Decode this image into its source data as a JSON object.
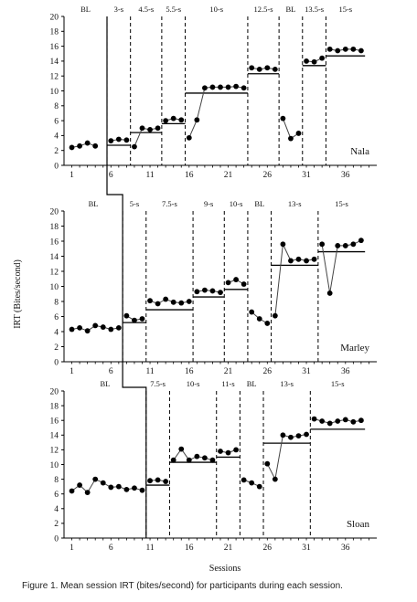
{
  "caption": "Figure 1. Mean session IRT (bites/second) for participants during each session.",
  "chart_data": {
    "type": "line",
    "ylabel": "IRT (Bites/second)",
    "xlabel": "Sessions",
    "ylim": [
      0,
      20
    ],
    "xlim": [
      0,
      40
    ],
    "y_ticks": [
      0,
      2,
      4,
      6,
      8,
      10,
      12,
      14,
      16,
      18,
      20
    ],
    "x_ticks": [
      1,
      6,
      11,
      16,
      21,
      26,
      31,
      36
    ],
    "panels": [
      {
        "participant": "Nala",
        "x_tick_labels": [
          "1",
          "6",
          "11",
          "16",
          "21",
          "26",
          "31",
          "36"
        ],
        "phases": [
          {
            "label": "BL",
            "start": 0,
            "end": 5.5
          },
          {
            "label": "3-s",
            "start": 5.5,
            "end": 8.5
          },
          {
            "label": "4.5-s",
            "start": 8.5,
            "end": 12.5
          },
          {
            "label": "5.5-s",
            "start": 12.5,
            "end": 15.5
          },
          {
            "label": "10-s",
            "start": 15.5,
            "end": 23.5
          },
          {
            "label": "12.5-s",
            "start": 23.5,
            "end": 27.5
          },
          {
            "label": "BL",
            "start": 27.5,
            "end": 30.5
          },
          {
            "label": "13.5-s",
            "start": 30.5,
            "end": 33.5
          },
          {
            "label": "15-s",
            "start": 33.5,
            "end": 38.5
          }
        ],
        "criterion_lines": [
          {
            "y": 2.7,
            "x0": 5.5,
            "x1": 8.5
          },
          {
            "y": 4.4,
            "x0": 8.5,
            "x1": 12.5
          },
          {
            "y": 5.6,
            "x0": 12.5,
            "x1": 15.5
          },
          {
            "y": 9.7,
            "x0": 15.5,
            "x1": 23.5
          },
          {
            "y": 12.3,
            "x0": 23.5,
            "x1": 27.5
          },
          {
            "y": 13.4,
            "x0": 30.5,
            "x1": 33.5
          },
          {
            "y": 14.7,
            "x0": 33.5,
            "x1": 38.5
          }
        ],
        "series": [
          {
            "x": [
              1,
              2,
              3,
              4
            ],
            "y": [
              2.4,
              2.6,
              3.0,
              2.6
            ]
          },
          {
            "x": [
              6,
              7,
              8
            ],
            "y": [
              3.3,
              3.5,
              3.4
            ]
          },
          {
            "x": [
              9,
              10,
              11,
              12
            ],
            "y": [
              2.5,
              5.0,
              4.8,
              5.0
            ]
          },
          {
            "x": [
              13,
              14,
              15
            ],
            "y": [
              6.0,
              6.3,
              6.1
            ]
          },
          {
            "x": [
              16,
              17,
              18,
              19,
              20,
              21,
              22,
              23
            ],
            "y": [
              3.7,
              6.1,
              10.4,
              10.5,
              10.5,
              10.5,
              10.6,
              10.4
            ]
          },
          {
            "x": [
              24,
              25,
              26,
              27
            ],
            "y": [
              13.1,
              12.9,
              13.1,
              12.9
            ]
          },
          {
            "x": [
              28,
              29,
              30
            ],
            "y": [
              6.3,
              3.6,
              4.3
            ]
          },
          {
            "x": [
              31,
              32,
              33
            ],
            "y": [
              14.0,
              13.9,
              14.4
            ]
          },
          {
            "x": [
              34,
              35,
              36,
              37,
              38
            ],
            "y": [
              15.6,
              15.4,
              15.6,
              15.6,
              15.4
            ]
          }
        ]
      },
      {
        "participant": "Marley",
        "x_tick_labels": [
          "1",
          "6",
          "11",
          "16",
          "21",
          "26",
          "31",
          "36"
        ],
        "phases": [
          {
            "label": "BL",
            "start": 0,
            "end": 7.5
          },
          {
            "label": "5-s",
            "start": 7.5,
            "end": 10.5
          },
          {
            "label": "7.5-s",
            "start": 10.5,
            "end": 16.5
          },
          {
            "label": "9-s",
            "start": 16.5,
            "end": 20.5
          },
          {
            "label": "10-s",
            "start": 20.5,
            "end": 23.5
          },
          {
            "label": "BL",
            "start": 23.5,
            "end": 26.5
          },
          {
            "label": "13-s",
            "start": 26.5,
            "end": 32.5
          },
          {
            "label": "15-s",
            "start": 32.5,
            "end": 38.5
          }
        ],
        "criterion_lines": [
          {
            "y": 5.2,
            "x0": 7.5,
            "x1": 10.5
          },
          {
            "y": 6.9,
            "x0": 10.5,
            "x1": 16.5
          },
          {
            "y": 8.6,
            "x0": 16.5,
            "x1": 20.5
          },
          {
            "y": 9.6,
            "x0": 20.5,
            "x1": 23.5
          },
          {
            "y": 12.8,
            "x0": 26.5,
            "x1": 32.5
          },
          {
            "y": 14.6,
            "x0": 32.5,
            "x1": 38.5
          }
        ],
        "series": [
          {
            "x": [
              1,
              2,
              3,
              4,
              5,
              6,
              7
            ],
            "y": [
              4.3,
              4.5,
              4.1,
              4.8,
              4.6,
              4.3,
              4.5
            ]
          },
          {
            "x": [
              8,
              9,
              10
            ],
            "y": [
              6.1,
              5.5,
              5.7
            ]
          },
          {
            "x": [
              11,
              12,
              13,
              14,
              15,
              16
            ],
            "y": [
              8.1,
              7.7,
              8.3,
              7.9,
              7.8,
              8.0
            ]
          },
          {
            "x": [
              17,
              18,
              19,
              20
            ],
            "y": [
              9.3,
              9.5,
              9.4,
              9.2
            ]
          },
          {
            "x": [
              21,
              22,
              23
            ],
            "y": [
              10.5,
              10.9,
              10.3
            ]
          },
          {
            "x": [
              24,
              25,
              26
            ],
            "y": [
              6.6,
              5.7,
              5.1
            ]
          },
          {
            "x": [
              27,
              28,
              29,
              30,
              31,
              32
            ],
            "y": [
              6.1,
              15.6,
              13.4,
              13.6,
              13.4,
              13.6
            ]
          },
          {
            "x": [
              33,
              34,
              35,
              36,
              37,
              38
            ],
            "y": [
              15.6,
              9.1,
              15.4,
              15.4,
              15.6,
              16.1
            ]
          }
        ]
      },
      {
        "participant": "Sloan",
        "x_tick_labels": [
          "1",
          "6",
          "11",
          "16",
          "21",
          "26",
          "31",
          "36"
        ],
        "phases": [
          {
            "label": "BL",
            "start": 0,
            "end": 10.5
          },
          {
            "label": "7.5-s",
            "start": 10.5,
            "end": 13.5
          },
          {
            "label": "10-s",
            "start": 13.5,
            "end": 19.5
          },
          {
            "label": "11-s",
            "start": 19.5,
            "end": 22.5
          },
          {
            "label": "BL",
            "start": 22.5,
            "end": 25.5
          },
          {
            "label": "13-s",
            "start": 25.5,
            "end": 31.5
          },
          {
            "label": "15-s",
            "start": 31.5,
            "end": 38.5
          }
        ],
        "criterion_lines": [
          {
            "y": 7.2,
            "x0": 10.5,
            "x1": 13.5
          },
          {
            "y": 10.3,
            "x0": 13.5,
            "x1": 19.5
          },
          {
            "y": 11.0,
            "x0": 19.5,
            "x1": 22.5
          },
          {
            "y": 12.9,
            "x0": 25.5,
            "x1": 31.5
          },
          {
            "y": 14.8,
            "x0": 31.5,
            "x1": 38.5
          }
        ],
        "series": [
          {
            "x": [
              1,
              2,
              3,
              4,
              5,
              6,
              7,
              8,
              9,
              10
            ],
            "y": [
              6.4,
              7.2,
              6.2,
              8.0,
              7.5,
              6.9,
              7.0,
              6.6,
              6.8,
              6.5
            ]
          },
          {
            "x": [
              11,
              12,
              13
            ],
            "y": [
              7.8,
              7.9,
              7.7
            ]
          },
          {
            "x": [
              14,
              15,
              16,
              17,
              18,
              19
            ],
            "y": [
              10.6,
              12.1,
              10.6,
              11.1,
              10.9,
              10.6
            ]
          },
          {
            "x": [
              20,
              21,
              22
            ],
            "y": [
              11.8,
              11.6,
              12.0
            ]
          },
          {
            "x": [
              23,
              24,
              25
            ],
            "y": [
              7.9,
              7.5,
              7.0
            ]
          },
          {
            "x": [
              26,
              27,
              28,
              29,
              30,
              31
            ],
            "y": [
              10.1,
              8.0,
              14.0,
              13.7,
              13.9,
              14.1
            ]
          },
          {
            "x": [
              32,
              33,
              34,
              35,
              36,
              37,
              38
            ],
            "y": [
              16.2,
              15.9,
              15.6,
              15.9,
              16.1,
              15.8,
              16.0
            ]
          }
        ]
      }
    ]
  }
}
